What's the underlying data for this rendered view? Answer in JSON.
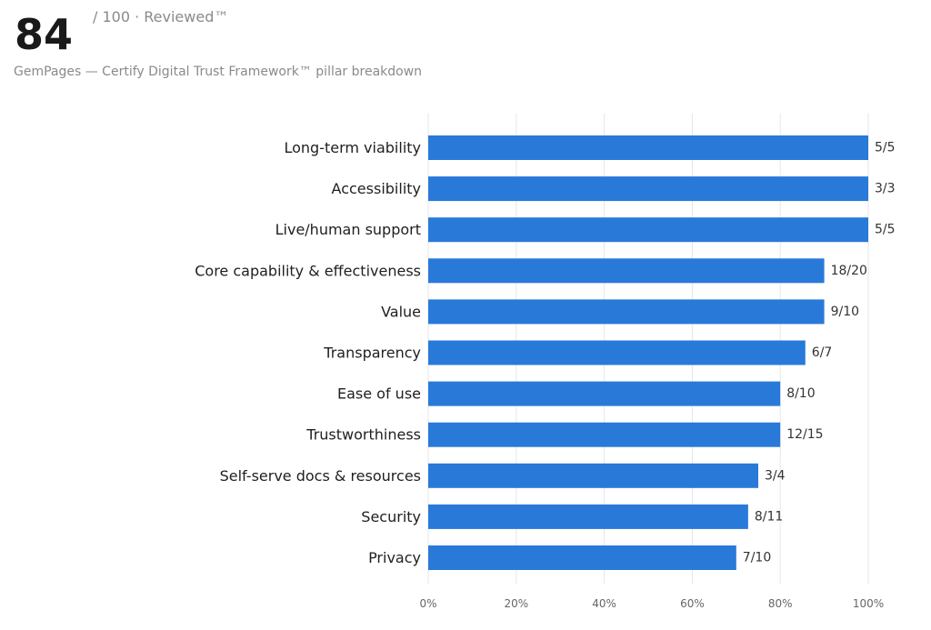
{
  "header": {
    "score": "84",
    "score_suffix": "/ 100 · Reviewed™",
    "subtitle": "GemPages — Certify Digital Trust Framework™ pillar breakdown"
  },
  "colors": {
    "bar": "#2979d9",
    "grid": "#e6e6e6"
  },
  "chart_data": {
    "type": "bar",
    "orientation": "horizontal",
    "categories": [
      "Long-term viability",
      "Accessibility",
      "Live/human support",
      "Core capability & effectiveness",
      "Value",
      "Transparency",
      "Ease of use",
      "Trustworthiness",
      "Self-serve docs & resources",
      "Security",
      "Privacy"
    ],
    "values": [
      100,
      100,
      100,
      90,
      90,
      85.7,
      80,
      80,
      75,
      72.7,
      70
    ],
    "value_labels": [
      "5/5",
      "3/3",
      "5/5",
      "18/20",
      "9/10",
      "6/7",
      "8/10",
      "12/15",
      "3/4",
      "8/11",
      "7/10"
    ],
    "xlim": [
      0,
      100
    ],
    "xticks": [
      0,
      20,
      40,
      60,
      80,
      100
    ],
    "xtick_labels": [
      "0%",
      "20%",
      "40%",
      "60%",
      "80%",
      "100%"
    ],
    "grid": true,
    "title": "",
    "xlabel": "",
    "ylabel": ""
  }
}
